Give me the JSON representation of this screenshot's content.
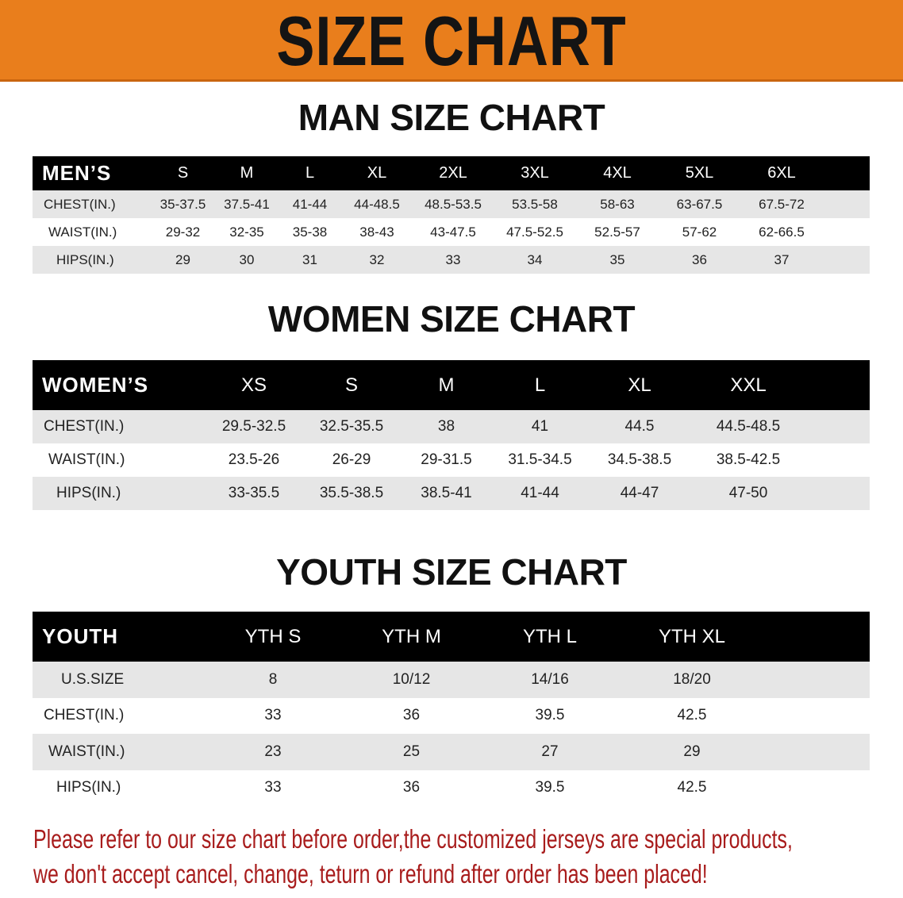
{
  "banner": {
    "title": "SIZE CHART",
    "color": "#e97e1c"
  },
  "men": {
    "title": "MAN SIZE CHART",
    "header": [
      "MEN’S",
      "S",
      "M",
      "L",
      "XL",
      "2XL",
      "3XL",
      "4XL",
      "5XL",
      "6XL"
    ],
    "rows": [
      {
        "label": "CHEST(IN.)",
        "values": [
          "35-37.5",
          "37.5-41",
          "41-44",
          "44-48.5",
          "48.5-53.5",
          "53.5-58",
          "58-63",
          "63-67.5",
          "67.5-72"
        ]
      },
      {
        "label": "WAIST(IN.)",
        "values": [
          "29-32",
          "32-35",
          "35-38",
          "38-43",
          "43-47.5",
          "47.5-52.5",
          "52.5-57",
          "57-62",
          "62-66.5"
        ]
      },
      {
        "label": "HIPS(IN.)",
        "values": [
          "29",
          "30",
          "31",
          "32",
          "33",
          "34",
          "35",
          "36",
          "37"
        ]
      }
    ]
  },
  "women": {
    "title": "WOMEN SIZE CHART",
    "header": [
      "WOMEN’S",
      "XS",
      "S",
      "M",
      "L",
      "XL",
      "XXL"
    ],
    "rows": [
      {
        "label": "CHEST(IN.)",
        "values": [
          "29.5-32.5",
          "32.5-35.5",
          "38",
          "41",
          "44.5",
          "44.5-48.5"
        ]
      },
      {
        "label": "WAIST(IN.)",
        "values": [
          "23.5-26",
          "26-29",
          "29-31.5",
          "31.5-34.5",
          "34.5-38.5",
          "38.5-42.5"
        ]
      },
      {
        "label": "HIPS(IN.)",
        "values": [
          "33-35.5",
          "35.5-38.5",
          "38.5-41",
          "41-44",
          "44-47",
          "47-50"
        ]
      }
    ]
  },
  "youth": {
    "title": "YOUTH SIZE CHART",
    "header": [
      "YOUTH",
      "YTH S",
      "YTH M",
      "YTH L",
      "YTH XL"
    ],
    "rows": [
      {
        "label": "U.S.SIZE",
        "values": [
          "8",
          "10/12",
          "14/16",
          "18/20"
        ]
      },
      {
        "label": "CHEST(IN.)",
        "values": [
          "33",
          "36",
          "39.5",
          "42.5"
        ]
      },
      {
        "label": "WAIST(IN.)",
        "values": [
          "23",
          "25",
          "27",
          "29"
        ]
      },
      {
        "label": "HIPS(IN.)",
        "values": [
          "33",
          "36",
          "39.5",
          "42.5"
        ]
      }
    ]
  },
  "notice": {
    "line1": "Please refer to our size chart before order,the customized jerseys are special products,",
    "line2": "we don't accept cancel, change, teturn or refund after order has been placed!",
    "color": "#a81c1c"
  }
}
